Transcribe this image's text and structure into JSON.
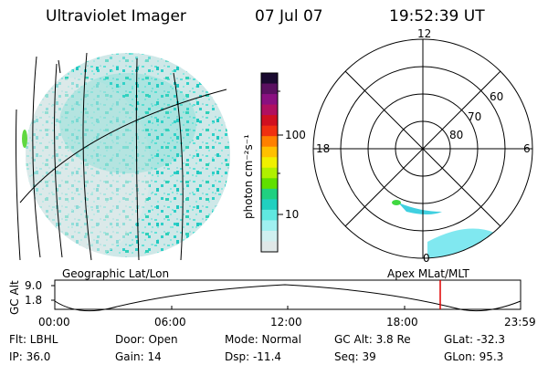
{
  "header": {
    "title": "Ultraviolet Imager",
    "date": "07 Jul 07",
    "time": "19:52:39 UT"
  },
  "colorbar": {
    "unit_label": "photon cm⁻²s⁻¹",
    "ticks": [
      "100",
      "10"
    ],
    "colors": [
      "#1a0a30",
      "#5a1060",
      "#8a1080",
      "#b01060",
      "#d01020",
      "#f03010",
      "#ff8000",
      "#ffc000",
      "#f0f000",
      "#b0f000",
      "#60e000",
      "#20d080",
      "#20d0c0",
      "#60e8e0",
      "#a0f0f0",
      "#d0f0f0",
      "#e0e8e8"
    ]
  },
  "polar": {
    "mlt_labels": {
      "top": "12",
      "left": "18",
      "right": "6",
      "bottom": "0"
    },
    "lat_labels": [
      "60",
      "70",
      "80"
    ]
  },
  "timeline": {
    "left_label": "Geographic Lat/Lon",
    "right_label": "Apex MLat/MLT",
    "y_axis_label": "GC Alt",
    "y_top": "9.0",
    "y_bottom": "1.8",
    "x_ticks": [
      "00:00",
      "06:00",
      "12:00",
      "18:00",
      "23:59"
    ],
    "marker_time": "19:52",
    "marker_color": "#e00000"
  },
  "footer": {
    "flt": "Flt: LBHL",
    "door": "Door: Open",
    "mode": "Mode: Normal",
    "gc_alt": "GC Alt: 3.8 Re",
    "glat": "GLat: -32.3",
    "ip": "IP: 36.0",
    "gain": "Gain: 14",
    "dsp": "Dsp:  -11.4",
    "seq": "Seq: 39",
    "glon": "GLon:  95.3"
  }
}
